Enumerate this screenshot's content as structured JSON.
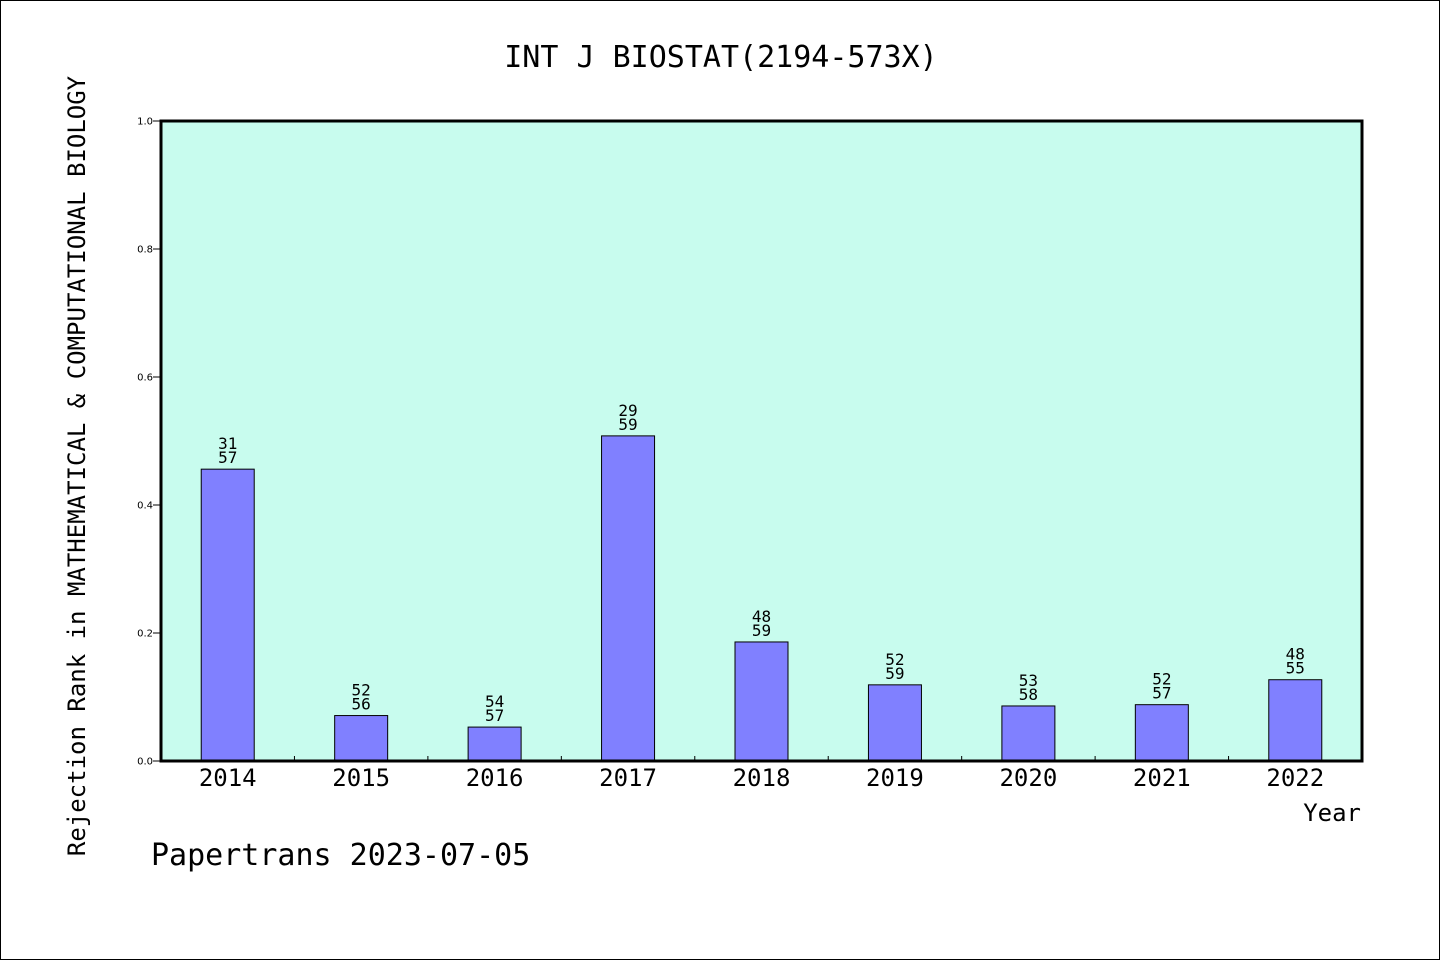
{
  "chart_data": {
    "type": "bar",
    "title": "INT J BIOSTAT(2194-573X)",
    "ylabel": "Rejection Rank in MATHEMATICAL & COMPUTATIONAL BIOLOGY",
    "xlabel": "Year",
    "footer": "Papertrans 2023-07-05",
    "categories": [
      "2014",
      "2015",
      "2016",
      "2017",
      "2018",
      "2019",
      "2020",
      "2021",
      "2022"
    ],
    "values": [
      0.456,
      0.071,
      0.053,
      0.508,
      0.186,
      0.119,
      0.086,
      0.088,
      0.127
    ],
    "annotations": [
      [
        "31",
        "57"
      ],
      [
        "52",
        "56"
      ],
      [
        "54",
        "57"
      ],
      [
        "29",
        "59"
      ],
      [
        "48",
        "59"
      ],
      [
        "52",
        "59"
      ],
      [
        "53",
        "58"
      ],
      [
        "52",
        "57"
      ],
      [
        "48",
        "55"
      ]
    ],
    "ylim": [
      0.0,
      1.0
    ],
    "yticks": [
      "0.0",
      "0.2",
      "0.4",
      "0.6",
      "0.8",
      "1.0"
    ],
    "grid": false,
    "legend": "none",
    "colors": {
      "plot_background": "#c8fcee",
      "bar_fill": "#8080ff",
      "bar_stroke": "#000000",
      "axis": "#000000"
    }
  }
}
